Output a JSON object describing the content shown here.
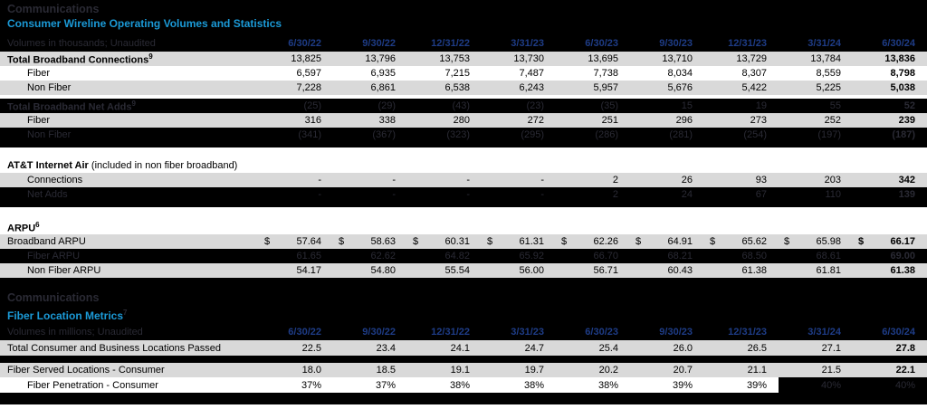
{
  "colors": {
    "accent_blue": "#1B9AD7",
    "date_navy": "#1E3C86",
    "row_gray": "#D9D9D9",
    "faint": "#2A2A34"
  },
  "sections": [
    {
      "segment_title": "Communications",
      "table_title": "Consumer Wireline Operating Volumes and Statistics",
      "units_note": "Volumes in thousands; Unaudited",
      "columns": [
        "6/30/22",
        "9/30/22",
        "12/31/22",
        "3/31/23",
        "6/30/23",
        "9/30/23",
        "12/31/23",
        "3/31/24",
        "6/30/24"
      ],
      "rows": [
        {
          "type": "data",
          "bg": "gray",
          "bold_label": true,
          "label": "Total Broadband Connections",
          "sup": "9",
          "bold_last": true,
          "values": [
            "13,825",
            "13,796",
            "13,753",
            "13,730",
            "13,695",
            "13,710",
            "13,729",
            "13,784",
            "13,836"
          ]
        },
        {
          "type": "data",
          "bg": "white",
          "indent": true,
          "label": "Fiber",
          "bold_last": true,
          "values": [
            "6,597",
            "6,935",
            "7,215",
            "7,487",
            "7,738",
            "8,034",
            "8,307",
            "8,559",
            "8,798"
          ]
        },
        {
          "type": "data",
          "bg": "gray",
          "indent": true,
          "label": "Non Fiber",
          "bold_last": true,
          "values": [
            "7,228",
            "6,861",
            "6,538",
            "6,243",
            "5,957",
            "5,676",
            "5,422",
            "5,225",
            "5,038"
          ]
        },
        {
          "type": "gap"
        },
        {
          "type": "data",
          "bg": "black",
          "bold_label": true,
          "label": "Total Broadband Net Adds",
          "sup": "9",
          "bold_last": true,
          "values": [
            "(25)",
            "(29)",
            "(43)",
            "(23)",
            "(35)",
            "15",
            "19",
            "55",
            "52"
          ]
        },
        {
          "type": "data",
          "bg": "gray",
          "indent": true,
          "label": "Fiber",
          "bold_last": true,
          "values": [
            "316",
            "338",
            "280",
            "272",
            "251",
            "296",
            "273",
            "252",
            "239"
          ]
        },
        {
          "type": "data",
          "bg": "black",
          "indent": true,
          "label": "Non Fiber",
          "bold_last": true,
          "values": [
            "(341)",
            "(367)",
            "(323)",
            "(295)",
            "(286)",
            "(281)",
            "(254)",
            "(197)",
            "(187)"
          ]
        },
        {
          "type": "sep",
          "bg": "blacksep",
          "h": 6
        },
        {
          "type": "sep",
          "bg": "whitesep",
          "h": 12
        },
        {
          "type": "heading",
          "label": "AT&T Internet Air",
          "note": "(included in non fiber broadband)"
        },
        {
          "type": "data",
          "bg": "gray",
          "indent": true,
          "label": "Connections",
          "bold_last": true,
          "values": [
            "-",
            "-",
            "-",
            "-",
            "2",
            "26",
            "93",
            "203",
            "342"
          ]
        },
        {
          "type": "data",
          "bg": "black",
          "indent": true,
          "label": "Net Adds",
          "bold_last": true,
          "values": [
            "-",
            "-",
            "-",
            "-",
            "2",
            "24",
            "67",
            "110",
            "139"
          ]
        },
        {
          "type": "sep",
          "bg": "blacksep",
          "h": 6
        },
        {
          "type": "sep",
          "bg": "whitesep",
          "h": 14
        },
        {
          "type": "heading",
          "label": "ARPU",
          "sup": "6"
        },
        {
          "type": "data",
          "bg": "gray",
          "label": "Broadband ARPU",
          "dollar": true,
          "bold_last": true,
          "values": [
            "57.64",
            "58.63",
            "60.31",
            "61.31",
            "62.26",
            "64.91",
            "65.62",
            "65.98",
            "66.17"
          ]
        },
        {
          "type": "data",
          "bg": "black",
          "indent": true,
          "label": "Fiber ARPU",
          "bold_last": true,
          "values": [
            "61.65",
            "62.62",
            "64.82",
            "65.92",
            "66.70",
            "68.21",
            "68.50",
            "68.61",
            "69.00"
          ]
        },
        {
          "type": "data",
          "bg": "gray",
          "indent": true,
          "label": "Non Fiber ARPU",
          "bold_last": true,
          "values": [
            "54.17",
            "54.80",
            "55.54",
            "56.00",
            "56.71",
            "60.43",
            "61.38",
            "61.81",
            "61.38"
          ]
        }
      ]
    },
    {
      "segment_title": "Communications",
      "table_title": "Fiber Location Metrics",
      "table_title_sup": "7",
      "units_note": "Volumes in millions; Unaudited",
      "columns": [
        "6/30/22",
        "9/30/22",
        "12/31/22",
        "3/31/23",
        "6/30/23",
        "9/30/23",
        "12/31/23",
        "3/31/24",
        "6/30/24"
      ],
      "rows": [
        {
          "type": "data",
          "bg": "gray",
          "s2": true,
          "label": "Total Consumer and Business Locations Passed",
          "bold_last": true,
          "values": [
            "22.5",
            "23.4",
            "24.1",
            "24.7",
            "25.4",
            "26.0",
            "26.5",
            "27.1",
            "27.8"
          ]
        },
        {
          "type": "sep",
          "bg": "blacksep",
          "h": 8
        },
        {
          "type": "data",
          "bg": "gray",
          "label": "Fiber Served Locations - Consumer",
          "bold_last": true,
          "values": [
            "18.0",
            "18.5",
            "19.1",
            "19.7",
            "20.2",
            "20.7",
            "21.1",
            "21.5",
            "22.1"
          ]
        },
        {
          "type": "data",
          "bg": "white",
          "s2": true,
          "indent": true,
          "label": "Fiber Penetration - Consumer",
          "inverted_from": 7,
          "values": [
            "37%",
            "37%",
            "38%",
            "38%",
            "38%",
            "39%",
            "39%",
            "40%",
            "40%"
          ]
        }
      ]
    }
  ]
}
